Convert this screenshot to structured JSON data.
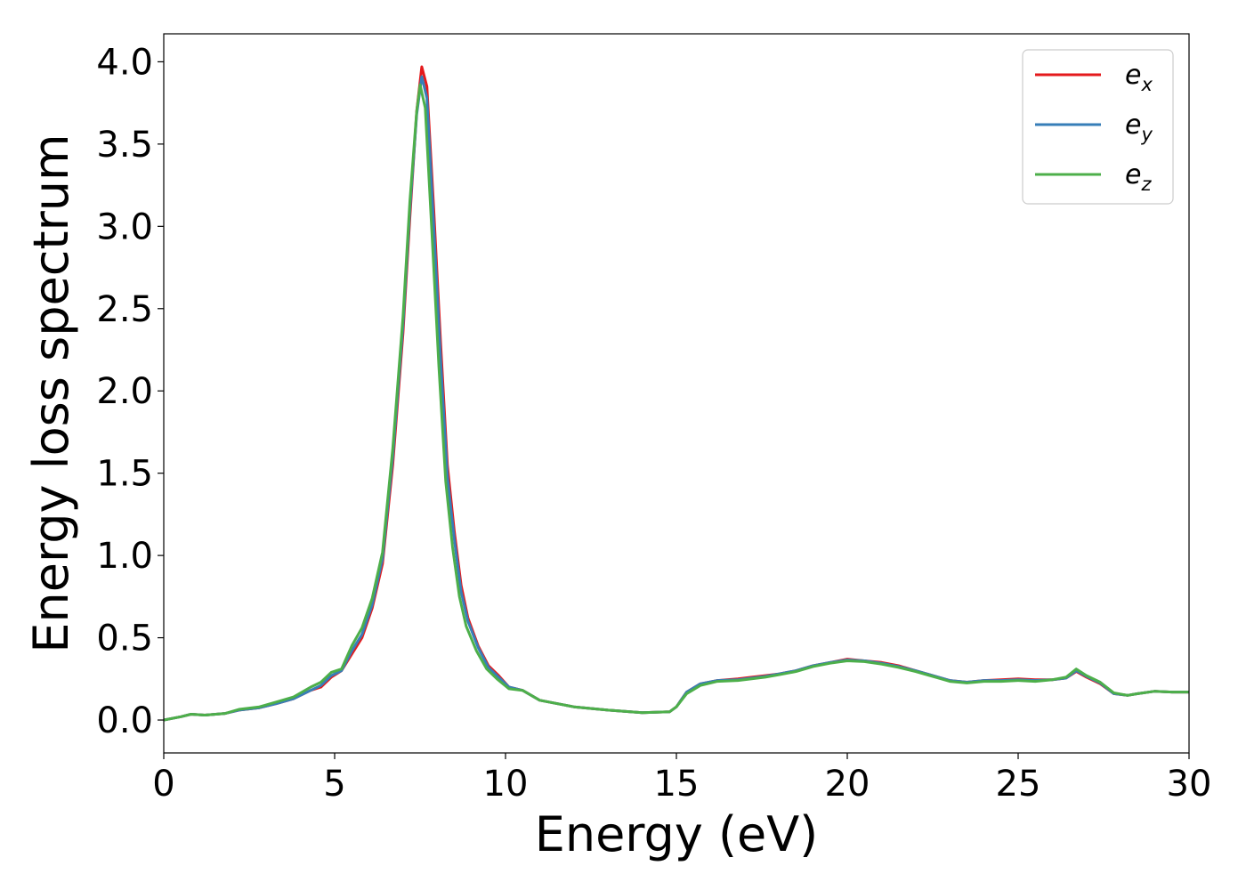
{
  "chart_data": {
    "type": "line",
    "title": "",
    "xlabel": "Energy (eV)",
    "ylabel": "Energy loss spectrum",
    "xlim": [
      0,
      30
    ],
    "ylim": [
      -0.2,
      4.17
    ],
    "x_ticks": [
      "0",
      "5",
      "10",
      "15",
      "20",
      "25",
      "30"
    ],
    "y_ticks": [
      "0.0",
      "0.5",
      "1.0",
      "1.5",
      "2.0",
      "2.5",
      "3.0",
      "3.5",
      "4.0"
    ],
    "grid": false,
    "legend_position": "top-right",
    "series": [
      {
        "name": "e",
        "sub": "x",
        "color": "#e41a1c",
        "points": [
          [
            0,
            0
          ],
          [
            0.5,
            0.02
          ],
          [
            0.8,
            0.035
          ],
          [
            1.2,
            0.03
          ],
          [
            1.8,
            0.04
          ],
          [
            2.2,
            0.06
          ],
          [
            2.8,
            0.075
          ],
          [
            3.3,
            0.1
          ],
          [
            3.8,
            0.13
          ],
          [
            4.3,
            0.18
          ],
          [
            4.6,
            0.2
          ],
          [
            4.9,
            0.26
          ],
          [
            5.2,
            0.3
          ],
          [
            5.5,
            0.4
          ],
          [
            5.8,
            0.5
          ],
          [
            6.1,
            0.68
          ],
          [
            6.4,
            0.95
          ],
          [
            6.7,
            1.55
          ],
          [
            7.0,
            2.35
          ],
          [
            7.2,
            3.05
          ],
          [
            7.4,
            3.7
          ],
          [
            7.55,
            3.97
          ],
          [
            7.7,
            3.85
          ],
          [
            7.9,
            3.1
          ],
          [
            8.1,
            2.3
          ],
          [
            8.3,
            1.55
          ],
          [
            8.5,
            1.15
          ],
          [
            8.7,
            0.82
          ],
          [
            8.9,
            0.62
          ],
          [
            9.2,
            0.45
          ],
          [
            9.5,
            0.33
          ],
          [
            9.8,
            0.27
          ],
          [
            10.1,
            0.2
          ],
          [
            10.5,
            0.18
          ],
          [
            11,
            0.12
          ],
          [
            12,
            0.08
          ],
          [
            13,
            0.06
          ],
          [
            14,
            0.045
          ],
          [
            14.8,
            0.05
          ],
          [
            15.0,
            0.08
          ],
          [
            15.3,
            0.17
          ],
          [
            15.7,
            0.22
          ],
          [
            16.2,
            0.24
          ],
          [
            16.8,
            0.25
          ],
          [
            17.2,
            0.26
          ],
          [
            17.6,
            0.27
          ],
          [
            18.0,
            0.28
          ],
          [
            18.5,
            0.3
          ],
          [
            19.0,
            0.33
          ],
          [
            19.5,
            0.35
          ],
          [
            20.0,
            0.37
          ],
          [
            20.5,
            0.36
          ],
          [
            21.0,
            0.35
          ],
          [
            21.5,
            0.33
          ],
          [
            22.0,
            0.3
          ],
          [
            22.5,
            0.27
          ],
          [
            23.0,
            0.24
          ],
          [
            23.5,
            0.23
          ],
          [
            24.0,
            0.24
          ],
          [
            24.5,
            0.245
          ],
          [
            25.0,
            0.25
          ],
          [
            25.5,
            0.245
          ],
          [
            26.0,
            0.245
          ],
          [
            26.4,
            0.255
          ],
          [
            26.7,
            0.295
          ],
          [
            27.0,
            0.26
          ],
          [
            27.4,
            0.22
          ],
          [
            27.8,
            0.16
          ],
          [
            28.2,
            0.15
          ],
          [
            28.5,
            0.16
          ],
          [
            29.0,
            0.175
          ],
          [
            29.5,
            0.17
          ],
          [
            30,
            0.17
          ]
        ]
      },
      {
        "name": "e",
        "sub": "y",
        "color": "#377eb8",
        "points": [
          [
            0,
            0
          ],
          [
            0.5,
            0.02
          ],
          [
            0.8,
            0.035
          ],
          [
            1.2,
            0.03
          ],
          [
            1.8,
            0.04
          ],
          [
            2.2,
            0.06
          ],
          [
            2.8,
            0.075
          ],
          [
            3.3,
            0.1
          ],
          [
            3.8,
            0.13
          ],
          [
            4.3,
            0.18
          ],
          [
            4.6,
            0.21
          ],
          [
            4.9,
            0.27
          ],
          [
            5.2,
            0.3
          ],
          [
            5.5,
            0.42
          ],
          [
            5.8,
            0.52
          ],
          [
            6.1,
            0.7
          ],
          [
            6.4,
            0.98
          ],
          [
            6.7,
            1.6
          ],
          [
            7.0,
            2.4
          ],
          [
            7.2,
            3.1
          ],
          [
            7.4,
            3.68
          ],
          [
            7.55,
            3.91
          ],
          [
            7.7,
            3.78
          ],
          [
            7.9,
            3.0
          ],
          [
            8.1,
            2.2
          ],
          [
            8.3,
            1.48
          ],
          [
            8.5,
            1.1
          ],
          [
            8.7,
            0.78
          ],
          [
            8.9,
            0.6
          ],
          [
            9.2,
            0.44
          ],
          [
            9.5,
            0.32
          ],
          [
            9.8,
            0.26
          ],
          [
            10.1,
            0.2
          ],
          [
            10.5,
            0.18
          ],
          [
            11,
            0.12
          ],
          [
            12,
            0.08
          ],
          [
            13,
            0.06
          ],
          [
            14,
            0.045
          ],
          [
            14.8,
            0.05
          ],
          [
            15.0,
            0.08
          ],
          [
            15.3,
            0.17
          ],
          [
            15.7,
            0.22
          ],
          [
            16.2,
            0.24
          ],
          [
            16.8,
            0.245
          ],
          [
            17.2,
            0.255
          ],
          [
            17.6,
            0.265
          ],
          [
            18.0,
            0.28
          ],
          [
            18.5,
            0.3
          ],
          [
            19.0,
            0.33
          ],
          [
            19.5,
            0.35
          ],
          [
            20.0,
            0.365
          ],
          [
            20.5,
            0.36
          ],
          [
            21.0,
            0.345
          ],
          [
            21.5,
            0.325
          ],
          [
            22.0,
            0.3
          ],
          [
            22.5,
            0.27
          ],
          [
            23.0,
            0.24
          ],
          [
            23.5,
            0.23
          ],
          [
            24.0,
            0.24
          ],
          [
            24.5,
            0.24
          ],
          [
            25.0,
            0.245
          ],
          [
            25.5,
            0.24
          ],
          [
            26.0,
            0.245
          ],
          [
            26.4,
            0.255
          ],
          [
            26.7,
            0.3
          ],
          [
            27.0,
            0.265
          ],
          [
            27.4,
            0.225
          ],
          [
            27.8,
            0.16
          ],
          [
            28.2,
            0.15
          ],
          [
            28.5,
            0.16
          ],
          [
            29.0,
            0.175
          ],
          [
            29.5,
            0.17
          ],
          [
            30,
            0.17
          ]
        ]
      },
      {
        "name": "e",
        "sub": "z",
        "color": "#4daf4a",
        "points": [
          [
            0,
            0
          ],
          [
            0.5,
            0.02
          ],
          [
            0.8,
            0.035
          ],
          [
            1.2,
            0.03
          ],
          [
            1.8,
            0.04
          ],
          [
            2.2,
            0.065
          ],
          [
            2.8,
            0.08
          ],
          [
            3.3,
            0.11
          ],
          [
            3.8,
            0.14
          ],
          [
            4.3,
            0.2
          ],
          [
            4.6,
            0.23
          ],
          [
            4.9,
            0.29
          ],
          [
            5.2,
            0.31
          ],
          [
            5.5,
            0.45
          ],
          [
            5.8,
            0.56
          ],
          [
            6.1,
            0.74
          ],
          [
            6.4,
            1.02
          ],
          [
            6.7,
            1.65
          ],
          [
            7.0,
            2.45
          ],
          [
            7.2,
            3.15
          ],
          [
            7.4,
            3.7
          ],
          [
            7.5,
            3.86
          ],
          [
            7.65,
            3.72
          ],
          [
            7.85,
            2.95
          ],
          [
            8.05,
            2.15
          ],
          [
            8.25,
            1.45
          ],
          [
            8.45,
            1.05
          ],
          [
            8.65,
            0.75
          ],
          [
            8.85,
            0.57
          ],
          [
            9.15,
            0.42
          ],
          [
            9.45,
            0.31
          ],
          [
            9.75,
            0.25
          ],
          [
            10.1,
            0.19
          ],
          [
            10.5,
            0.18
          ],
          [
            11,
            0.12
          ],
          [
            12,
            0.08
          ],
          [
            13,
            0.06
          ],
          [
            14,
            0.045
          ],
          [
            14.8,
            0.05
          ],
          [
            15.0,
            0.08
          ],
          [
            15.3,
            0.16
          ],
          [
            15.7,
            0.21
          ],
          [
            16.2,
            0.235
          ],
          [
            16.8,
            0.24
          ],
          [
            17.2,
            0.25
          ],
          [
            17.6,
            0.26
          ],
          [
            18.0,
            0.275
          ],
          [
            18.5,
            0.295
          ],
          [
            19.0,
            0.325
          ],
          [
            19.5,
            0.345
          ],
          [
            20.0,
            0.36
          ],
          [
            20.5,
            0.355
          ],
          [
            21.0,
            0.34
          ],
          [
            21.5,
            0.32
          ],
          [
            22.0,
            0.295
          ],
          [
            22.5,
            0.265
          ],
          [
            23.0,
            0.235
          ],
          [
            23.5,
            0.225
          ],
          [
            24.0,
            0.235
          ],
          [
            24.5,
            0.235
          ],
          [
            25.0,
            0.24
          ],
          [
            25.5,
            0.235
          ],
          [
            26.0,
            0.245
          ],
          [
            26.4,
            0.26
          ],
          [
            26.7,
            0.31
          ],
          [
            27.0,
            0.27
          ],
          [
            27.4,
            0.23
          ],
          [
            27.8,
            0.165
          ],
          [
            28.2,
            0.15
          ],
          [
            28.5,
            0.16
          ],
          [
            29.0,
            0.175
          ],
          [
            29.5,
            0.17
          ],
          [
            30,
            0.17
          ]
        ]
      }
    ]
  }
}
